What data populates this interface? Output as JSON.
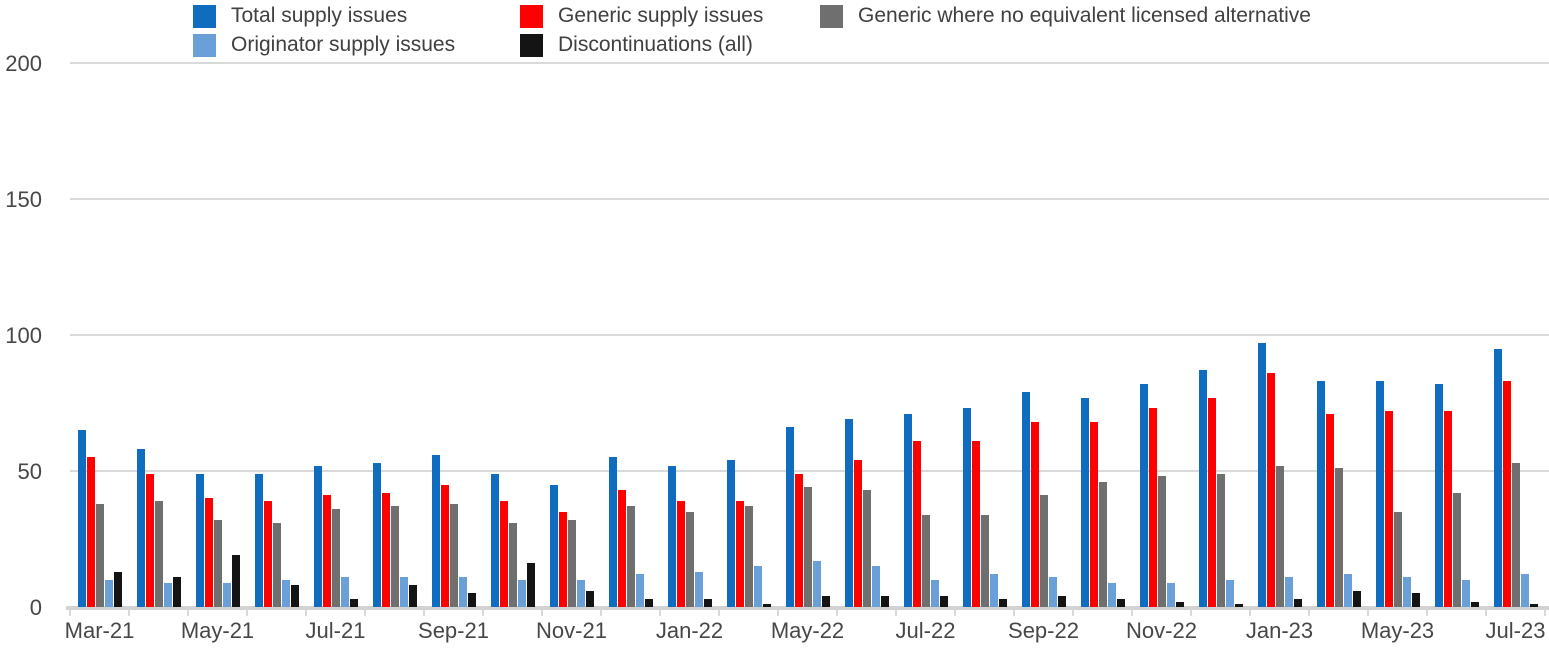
{
  "legend": {
    "items": [
      {
        "label": "Total supply issues",
        "color": "#0f6cbf",
        "row": 1,
        "col": 1
      },
      {
        "label": "Generic supply issues",
        "color": "#ff0000",
        "row": 1,
        "col": 2
      },
      {
        "label": "Generic where no equivalent licensed alternative",
        "color": "#6f6f6f",
        "row": 1,
        "col": 3
      },
      {
        "label": "Originator supply issues",
        "color": "#6a9fd8",
        "row": 2,
        "col": 1
      },
      {
        "label": "Discontinuations (all)",
        "color": "#141414",
        "row": 2,
        "col": 2
      }
    ]
  },
  "chart_data": {
    "type": "bar",
    "title": "",
    "xlabel": "",
    "ylabel": "",
    "ylim": [
      0,
      200
    ],
    "yticks": [
      0,
      50,
      100,
      150,
      200
    ],
    "grid": true,
    "legend_position": "top",
    "x_axis_shown_labels": [
      "Mar-21",
      "May-21",
      "Jul-21",
      "Sep-21",
      "Nov-21",
      "Jan-22",
      "May-22",
      "Jul-22",
      "Sep-22",
      "Nov-22",
      "Jan-23",
      "May-23",
      "Jul-23"
    ],
    "categories": [
      "Mar-21",
      "",
      "May-21",
      "",
      "Jul-21",
      "",
      "Sep-21",
      "",
      "Nov-21",
      "",
      "Jan-22",
      "",
      "May-22",
      "",
      "Jul-22",
      "",
      "Sep-22",
      "",
      "Nov-22",
      "",
      "Jan-23",
      "",
      "May-23",
      "",
      "Jul-23"
    ],
    "series": [
      {
        "name": "Total supply issues",
        "color": "#0f6cbf",
        "values": [
          65,
          58,
          49,
          49,
          52,
          53,
          56,
          49,
          45,
          55,
          52,
          54,
          66,
          69,
          71,
          73,
          79,
          77,
          82,
          87,
          97,
          83,
          83,
          82,
          95
        ]
      },
      {
        "name": "Generic supply issues",
        "color": "#ff0000",
        "values": [
          55,
          49,
          40,
          39,
          41,
          42,
          45,
          39,
          35,
          43,
          39,
          39,
          49,
          54,
          61,
          61,
          68,
          68,
          73,
          77,
          86,
          71,
          72,
          72,
          83
        ]
      },
      {
        "name": "Generic where no equivalent licensed alternative",
        "color": "#6f6f6f",
        "values": [
          38,
          39,
          32,
          31,
          36,
          37,
          38,
          31,
          32,
          37,
          35,
          37,
          44,
          43,
          34,
          34,
          41,
          46,
          48,
          49,
          52,
          51,
          35,
          42,
          53
        ]
      },
      {
        "name": "Originator supply issues",
        "color": "#6a9fd8",
        "values": [
          10,
          9,
          9,
          10,
          11,
          11,
          11,
          10,
          10,
          12,
          13,
          15,
          17,
          15,
          10,
          12,
          11,
          9,
          9,
          10,
          11,
          12,
          11,
          10,
          12
        ]
      },
      {
        "name": "Discontinuations (all)",
        "color": "#141414",
        "values": [
          13,
          11,
          19,
          8,
          3,
          8,
          5,
          16,
          6,
          3,
          3,
          1,
          4,
          4,
          4,
          3,
          4,
          3,
          2,
          1,
          3,
          6,
          5,
          2,
          1
        ]
      }
    ]
  },
  "colors": {
    "background": "#ffffff",
    "gridline": "#d9d9d9",
    "baseline": "#d2d2d2",
    "axis_text": "#474747",
    "legend_text": "#404040"
  }
}
